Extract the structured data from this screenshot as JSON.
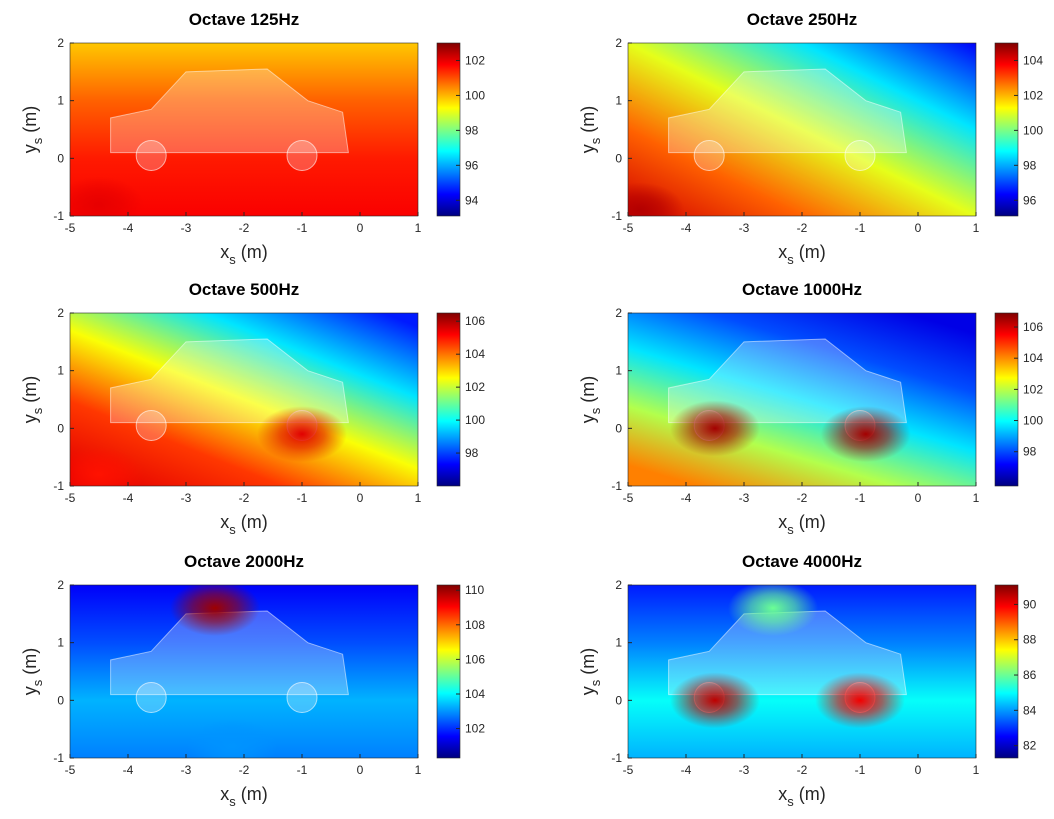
{
  "chart_data": [
    {
      "type": "heatmap",
      "title": "Octave 125Hz",
      "xlabel": "x",
      "xlabel_sub": "s",
      "xlabel_unit": "(m)",
      "ylabel": "y",
      "ylabel_sub": "s",
      "ylabel_unit": "(m)",
      "xlim": [
        -5,
        1
      ],
      "xticks": [
        -5,
        -4,
        -3,
        -2,
        -1,
        0,
        1
      ],
      "ylim": [
        -1,
        2
      ],
      "yticks": [
        -1,
        0,
        1,
        2
      ],
      "colormap": "jet",
      "clim": [
        93.1,
        103.0
      ],
      "cticks": [
        94,
        96,
        98,
        100,
        102
      ],
      "hotspots": [
        {
          "x": -4.5,
          "y": -0.8,
          "value": 102
        }
      ]
    },
    {
      "type": "heatmap",
      "title": "Octave 250Hz",
      "xlabel": "x",
      "xlabel_sub": "s",
      "xlabel_unit": "(m)",
      "ylabel": "y",
      "ylabel_sub": "s",
      "ylabel_unit": "(m)",
      "xlim": [
        -5,
        1
      ],
      "xticks": [
        -5,
        -4,
        -3,
        -2,
        -1,
        0,
        1
      ],
      "ylim": [
        -1,
        2
      ],
      "yticks": [
        -1,
        0,
        1,
        2
      ],
      "colormap": "jet",
      "clim": [
        95.1,
        105.0
      ],
      "cticks": [
        96,
        98,
        100,
        102,
        104
      ],
      "hotspots": [
        {
          "x": -4.8,
          "y": -0.9,
          "value": 104.5
        }
      ]
    },
    {
      "type": "heatmap",
      "title": "Octave 500Hz",
      "xlabel": "x",
      "xlabel_sub": "s",
      "xlabel_unit": "(m)",
      "ylabel": "y",
      "ylabel_sub": "s",
      "ylabel_unit": "(m)",
      "xlim": [
        -5,
        1
      ],
      "xticks": [
        -5,
        -4,
        -3,
        -2,
        -1,
        0,
        1
      ],
      "ylim": [
        -1,
        2
      ],
      "yticks": [
        -1,
        0,
        1,
        2
      ],
      "colormap": "jet",
      "clim": [
        96.0,
        106.5
      ],
      "cticks": [
        98,
        100,
        102,
        104,
        106
      ],
      "hotspots": [
        {
          "x": -1,
          "y": -0.1,
          "value": 105.5
        },
        {
          "x": -4.5,
          "y": -0.8,
          "value": 105
        }
      ]
    },
    {
      "type": "heatmap",
      "title": "Octave 1000Hz",
      "xlabel": "x",
      "xlabel_sub": "s",
      "xlabel_unit": "(m)",
      "ylabel": "y",
      "ylabel_sub": "s",
      "ylabel_unit": "(m)",
      "xlim": [
        -5,
        1
      ],
      "xticks": [
        -5,
        -4,
        -3,
        -2,
        -1,
        0,
        1
      ],
      "ylim": [
        -1,
        2
      ],
      "yticks": [
        -1,
        0,
        1,
        2
      ],
      "colormap": "jet",
      "clim": [
        95.8,
        106.9
      ],
      "cticks": [
        98,
        100,
        102,
        104,
        106
      ],
      "hotspots": [
        {
          "x": -3.5,
          "y": 0,
          "value": 106.5
        },
        {
          "x": -0.9,
          "y": -0.1,
          "value": 106.5
        }
      ]
    },
    {
      "type": "heatmap",
      "title": "Octave 2000Hz",
      "xlabel": "x",
      "xlabel_sub": "s",
      "xlabel_unit": "(m)",
      "ylabel": "y",
      "ylabel_sub": "s",
      "ylabel_unit": "(m)",
      "xlim": [
        -5,
        1
      ],
      "xticks": [
        -5,
        -4,
        -3,
        -2,
        -1,
        0,
        1
      ],
      "ylim": [
        -1,
        2
      ],
      "yticks": [
        -1,
        0,
        1,
        2
      ],
      "colormap": "jet",
      "clim": [
        100.3,
        110.3
      ],
      "cticks": [
        102,
        104,
        106,
        108,
        110
      ],
      "hotspots": [
        {
          "x": -2.5,
          "y": 1.6,
          "value": 110
        },
        {
          "x": -2.2,
          "y": -0.8,
          "value": 103
        }
      ]
    },
    {
      "type": "heatmap",
      "title": "Octave 4000Hz",
      "xlabel": "x",
      "xlabel_sub": "s",
      "xlabel_unit": "(m)",
      "ylabel": "y",
      "ylabel_sub": "s",
      "ylabel_unit": "(m)",
      "xlim": [
        -5,
        1
      ],
      "xticks": [
        -5,
        -4,
        -3,
        -2,
        -1,
        0,
        1
      ],
      "ylim": [
        -1,
        2
      ],
      "yticks": [
        -1,
        0,
        1,
        2
      ],
      "colormap": "jet",
      "clim": [
        81.3,
        91.1
      ],
      "cticks": [
        82,
        84,
        86,
        88,
        90
      ],
      "hotspots": [
        {
          "x": -3.5,
          "y": 0,
          "value": 90.5
        },
        {
          "x": -1,
          "y": 0,
          "value": 90
        },
        {
          "x": -2.5,
          "y": 1.6,
          "value": 86
        }
      ]
    }
  ]
}
